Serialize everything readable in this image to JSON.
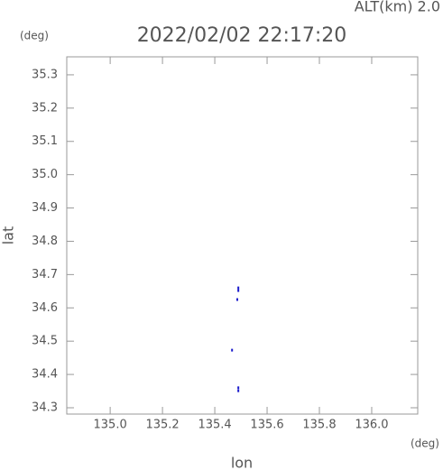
{
  "chart_data": {
    "type": "scatter",
    "title": "2022/02/02 22:17:20",
    "subtitle": "ALT(km) 2.0",
    "y_unit": "(deg)",
    "x_unit": "(deg)",
    "xlabel": "lon",
    "ylabel": "lat",
    "x": [
      135.49,
      135.49,
      135.486,
      135.466,
      135.49,
      135.49
    ],
    "values": [
      34.66,
      34.652,
      34.625,
      34.473,
      34.36,
      34.351
    ],
    "color": "#1a1acc",
    "xlim": [
      134.834,
      136.176
    ],
    "ylim": [
      34.281,
      35.354
    ],
    "xticks": [
      {
        "value": 135,
        "label": "135.0"
      },
      135.2,
      135.4,
      135.6,
      135.8,
      {
        "value": 136,
        "label": "136.0"
      }
    ],
    "yticks": [
      34.3,
      34.4,
      34.5,
      34.6,
      34.7,
      34.8,
      34.9,
      {
        "value": 35,
        "label": "35.0"
      },
      35.1,
      35.2,
      35.3
    ]
  }
}
